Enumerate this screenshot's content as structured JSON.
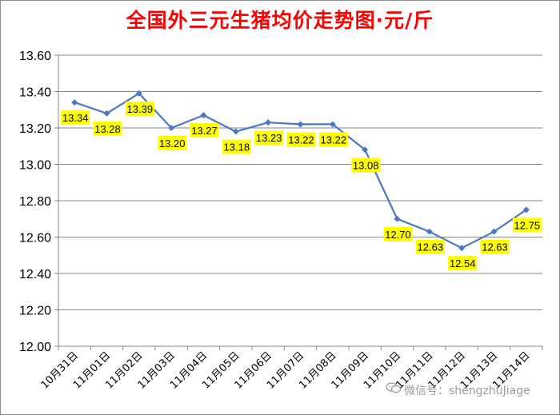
{
  "chart_data": {
    "type": "line",
    "title": "全国外三元生猪均价走势图·元/斤",
    "xlabel": "",
    "ylabel": "",
    "categories": [
      "10月31日",
      "11月01日",
      "11月02日",
      "11月03日",
      "11月04日",
      "11月05日",
      "11月06日",
      "11月07日",
      "11月08日",
      "11月09日",
      "11月10日",
      "11月11日",
      "11月12日",
      "11月13日",
      "11月14日"
    ],
    "series": [
      {
        "values": [
          13.34,
          13.28,
          13.39,
          13.2,
          13.27,
          13.18,
          13.23,
          13.22,
          13.22,
          13.08,
          12.7,
          12.63,
          12.54,
          12.63,
          12.75
        ],
        "labels": [
          "13.34",
          "13.28",
          "13.39",
          "13.20",
          "13.27",
          "13.18",
          "13.23",
          "13.22",
          "13.22",
          "13.08",
          "12.70",
          "12.63",
          "12.54",
          "12.63",
          "12.75"
        ]
      }
    ],
    "ylim": [
      12.0,
      13.6
    ],
    "yticks": [
      "12.00",
      "12.20",
      "12.40",
      "12.60",
      "12.80",
      "13.00",
      "13.20",
      "13.40",
      "13.60"
    ],
    "grid": true,
    "legend": "none",
    "colors": {
      "line": "#4a78c2",
      "marker": "#4a78c2",
      "label_bg": "#ffff00",
      "grid": "#878787",
      "title": "#ff0000"
    }
  },
  "watermark": {
    "text": "微信号：shengzhuJiage",
    "icon": "wechat-icon"
  }
}
